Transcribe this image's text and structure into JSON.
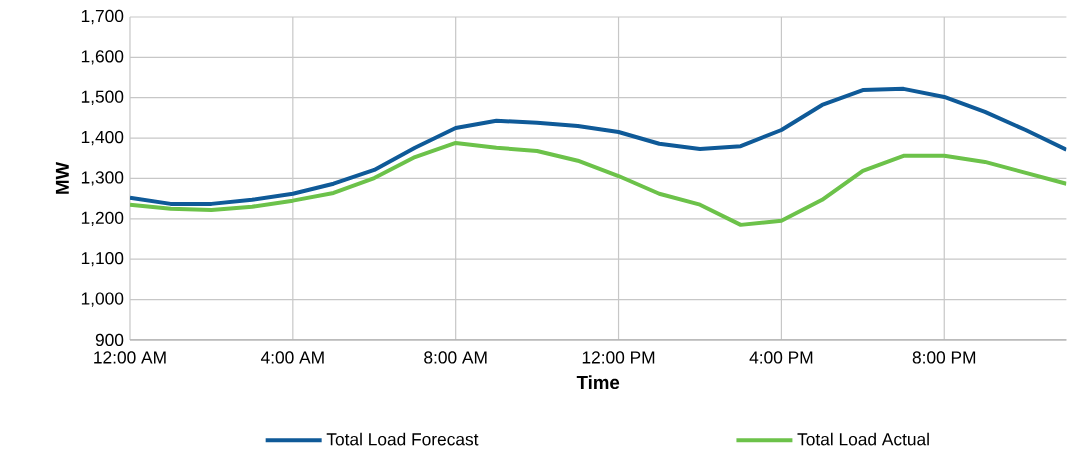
{
  "chart_data": {
    "type": "line",
    "xlabel": "Time",
    "ylabel": "MW",
    "x": [
      0,
      1,
      2,
      3,
      4,
      5,
      6,
      7,
      8,
      9,
      10,
      11,
      12,
      13,
      14,
      15,
      16,
      17,
      18,
      19,
      20,
      21,
      22,
      23
    ],
    "series": [
      {
        "name": "Total Load Forecast",
        "color": "#0f5a98",
        "values": [
          1252,
          1237,
          1237,
          1247,
          1262,
          1287,
          1321,
          1376,
          1425,
          1443,
          1438,
          1430,
          1415,
          1386,
          1373,
          1380,
          1420,
          1482,
          1519,
          1522,
          1502,
          1465,
          1420,
          1371
        ]
      },
      {
        "name": "Total Load Actual",
        "color": "#6cc24a",
        "values": [
          1235,
          1225,
          1222,
          1230,
          1245,
          1264,
          1301,
          1353,
          1388,
          1376,
          1368,
          1344,
          1306,
          1262,
          1235,
          1185,
          1195,
          1247,
          1319,
          1356,
          1356,
          1341,
          1314,
          1287
        ]
      }
    ],
    "xlim": [
      0,
      23
    ],
    "ylim": [
      900,
      1700
    ],
    "xticks": [
      {
        "value": 0,
        "label": "12:00 AM"
      },
      {
        "value": 4,
        "label": "4:00 AM"
      },
      {
        "value": 8,
        "label": "8:00 AM"
      },
      {
        "value": 12,
        "label": "12:00 PM"
      },
      {
        "value": 16,
        "label": "4:00 PM"
      },
      {
        "value": 20,
        "label": "8:00 PM"
      }
    ],
    "yticks": [
      {
        "value": 900,
        "label": "900"
      },
      {
        "value": 1000,
        "label": "1,000"
      },
      {
        "value": 1100,
        "label": "1,100"
      },
      {
        "value": 1200,
        "label": "1,200"
      },
      {
        "value": 1300,
        "label": "1,300"
      },
      {
        "value": 1400,
        "label": "1,400"
      },
      {
        "value": 1500,
        "label": "1,500"
      },
      {
        "value": 1600,
        "label": "1,600"
      },
      {
        "value": 1700,
        "label": "1,700"
      }
    ],
    "grid": true,
    "legend": "bottom",
    "marker": "none",
    "line_style": "solid"
  }
}
